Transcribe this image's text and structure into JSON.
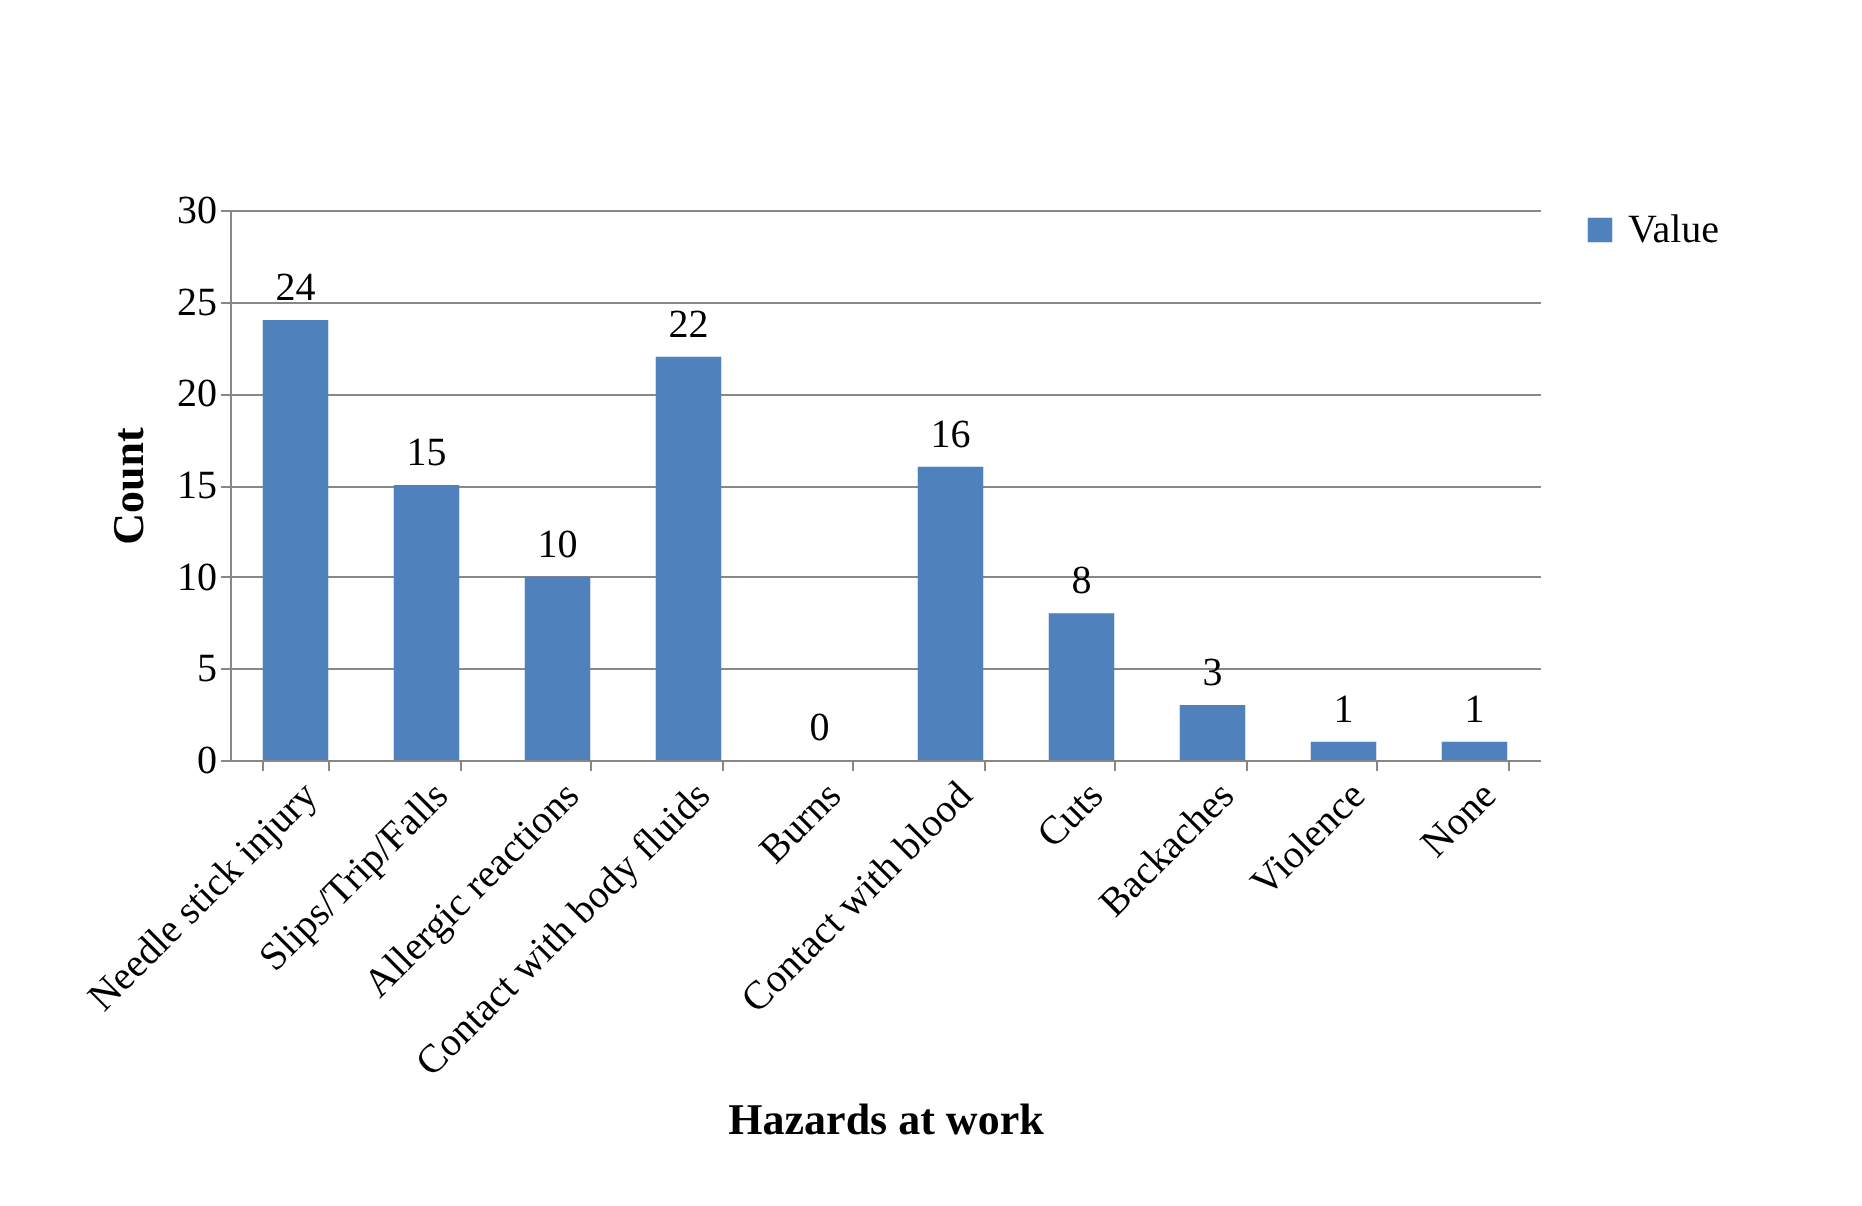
{
  "chart_data": {
    "type": "bar",
    "xlabel": "Hazards at work",
    "ylabel": "Count",
    "categories": [
      "Needle stick injury",
      "Slips/Trip/Falls",
      "Allergic reactions",
      "Contact with body fluids",
      "Burns",
      "Contact with blood",
      "Cuts",
      "Backaches",
      "Violence",
      "None"
    ],
    "series": [
      {
        "name": "Value",
        "color": "#4f81bd",
        "values": [
          24,
          15,
          10,
          22,
          0,
          16,
          8,
          3,
          1,
          1
        ]
      }
    ],
    "ylim": [
      0,
      30
    ],
    "yticks": [
      0,
      5,
      10,
      15,
      20,
      25,
      30
    ],
    "grid": "y",
    "legend": "right",
    "data_labels": true
  }
}
